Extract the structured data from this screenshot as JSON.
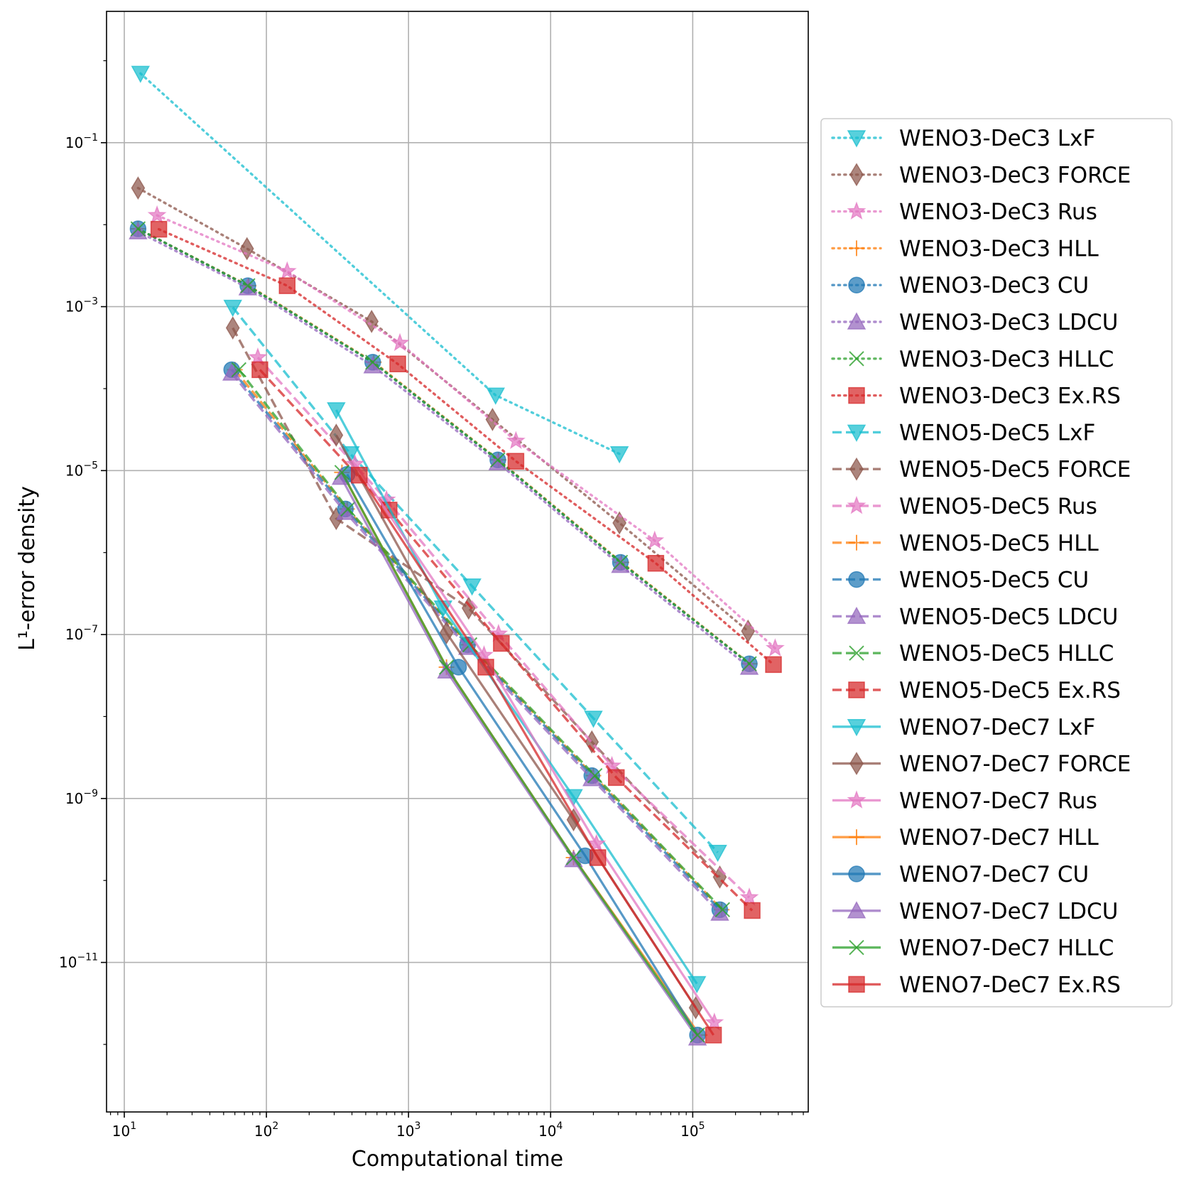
{
  "chart_data": {
    "type": "line",
    "xscale": "log",
    "yscale": "log",
    "xlabel": "Computational time",
    "ylabel": "L¹-error density",
    "xlim": [
      7.5,
      650000
    ],
    "ylim": [
      1.5e-13,
      4.0
    ],
    "xticks": [
      {
        "value": 10,
        "label": "10",
        "exp": "1"
      },
      {
        "value": 100,
        "label": "10",
        "exp": "2"
      },
      {
        "value": 1000,
        "label": "10",
        "exp": "3"
      },
      {
        "value": 10000,
        "label": "10",
        "exp": "4"
      },
      {
        "value": 100000,
        "label": "10",
        "exp": "5"
      }
    ],
    "yticks": [
      {
        "value": 0.1,
        "label": "10",
        "exp": "−1"
      },
      {
        "value": 0.001,
        "label": "10",
        "exp": "−3"
      },
      {
        "value": 1e-05,
        "label": "10",
        "exp": "−5"
      },
      {
        "value": 1e-07,
        "label": "10",
        "exp": "−7"
      },
      {
        "value": 1e-09,
        "label": "10",
        "exp": "−9"
      },
      {
        "value": 1e-11,
        "label": "10",
        "exp": "−11"
      }
    ],
    "grid": true,
    "legend_position": "right, outside the axes",
    "series": [
      {
        "name": "WENO3-DeC3 LxF",
        "color": "#17becf",
        "linestyle": "dotted",
        "marker": "triangle-down",
        "x": [
          13,
          4100,
          30500
        ],
        "y": [
          0.7,
          8.3e-05,
          1.6e-05
        ]
      },
      {
        "name": "WENO3-DeC3 FORCE",
        "color": "#8c564b",
        "linestyle": "dotted",
        "marker": "diamond",
        "x": [
          12.5,
          73,
          550,
          3900,
          30500,
          245000
        ],
        "y": [
          0.028,
          0.0051,
          0.00066,
          4.2e-05,
          2.3e-06,
          1.1e-07
        ]
      },
      {
        "name": "WENO3-DeC3 Rus",
        "color": "#e377c2",
        "linestyle": "dotted",
        "marker": "star",
        "x": [
          17,
          140,
          870,
          5700,
          54000,
          380000
        ],
        "y": [
          0.013,
          0.0027,
          0.00036,
          2.3e-05,
          1.4e-06,
          6.8e-08
        ]
      },
      {
        "name": "WENO3-DeC3 HLL",
        "color": "#ff7f0e",
        "linestyle": "dotted",
        "marker": "plus",
        "x": [
          12.5,
          75,
          570,
          4300,
          31500,
          252000
        ],
        "y": [
          0.0089,
          0.0018,
          0.00021,
          1.35e-05,
          7.6e-07,
          4.4e-08
        ]
      },
      {
        "name": "WENO3-DeC3 CU",
        "color": "#1f77b4",
        "linestyle": "dotted",
        "marker": "circle",
        "x": [
          12.5,
          74,
          560,
          4250,
          31000,
          250000
        ],
        "y": [
          0.0089,
          0.0018,
          0.00021,
          1.35e-05,
          7.6e-07,
          4.4e-08
        ]
      },
      {
        "name": "WENO3-DeC3 LDCU",
        "color": "#9467bd",
        "linestyle": "dotted",
        "marker": "triangle-up",
        "x": [
          12.5,
          74,
          560,
          4250,
          31000,
          250000
        ],
        "y": [
          0.0082,
          0.0017,
          0.00019,
          1.25e-05,
          7e-07,
          4e-08
        ]
      },
      {
        "name": "WENO3-DeC3 HLLC",
        "color": "#2ca02c",
        "linestyle": "dotted",
        "marker": "x",
        "x": [
          12.5,
          74,
          560,
          4250,
          31000,
          250000
        ],
        "y": [
          0.0089,
          0.0018,
          0.00021,
          1.35e-05,
          7.6e-07,
          4.4e-08
        ]
      },
      {
        "name": "WENO3-DeC3 Ex.RS",
        "color": "#d62728",
        "linestyle": "dotted",
        "marker": "square",
        "x": [
          17.5,
          140,
          840,
          5700,
          55000,
          370000
        ],
        "y": [
          0.0088,
          0.0018,
          0.0002,
          1.3e-05,
          7.4e-07,
          4.3e-08
        ]
      },
      {
        "name": "WENO5-DeC5 LxF",
        "color": "#17becf",
        "linestyle": "dashed",
        "marker": "triangle-down",
        "x": [
          58,
          390,
          2800,
          20000,
          150000
        ],
        "y": [
          0.00098,
          1.6e-05,
          3.9e-07,
          9.5e-09,
          2.2e-10
        ]
      },
      {
        "name": "WENO5-DeC5 FORCE",
        "color": "#8c564b",
        "linestyle": "dashed",
        "marker": "diamond",
        "x": [
          58,
          310,
          2650,
          19500,
          155000
        ],
        "y": [
          0.00055,
          2.6e-06,
          2.1e-07,
          4.9e-09,
          1.1e-10
        ]
      },
      {
        "name": "WENO5-DeC5 Rus",
        "color": "#e377c2",
        "linestyle": "dashed",
        "marker": "star",
        "x": [
          87,
          700,
          4300,
          27000,
          250000
        ],
        "y": [
          0.00024,
          4.4e-06,
          1.02e-07,
          2.5e-09,
          6.2e-11
        ]
      },
      {
        "name": "WENO5-DeC5 HLL",
        "color": "#ff7f0e",
        "linestyle": "dashed",
        "marker": "plus",
        "x": [
          60,
          370,
          2650,
          20000,
          160000
        ],
        "y": [
          0.00017,
          3.4e-06,
          7.5e-08,
          1.9e-09,
          4.4e-11
        ]
      },
      {
        "name": "WENO5-DeC5 CU",
        "color": "#1f77b4",
        "linestyle": "dashed",
        "marker": "circle",
        "x": [
          57,
          360,
          2600,
          19500,
          155000
        ],
        "y": [
          0.00017,
          3.4e-06,
          7.5e-08,
          1.9e-09,
          4.4e-11
        ]
      },
      {
        "name": "WENO5-DeC5 LDCU",
        "color": "#9467bd",
        "linestyle": "dashed",
        "marker": "triangle-up",
        "x": [
          57,
          360,
          2600,
          19500,
          155000
        ],
        "y": [
          0.000155,
          3.1e-06,
          7e-08,
          1.75e-09,
          4e-11
        ]
      },
      {
        "name": "WENO5-DeC5 HLLC",
        "color": "#2ca02c",
        "linestyle": "dashed",
        "marker": "x",
        "x": [
          64,
          375,
          2700,
          20500,
          162000
        ],
        "y": [
          0.00017,
          3.4e-06,
          7.5e-08,
          1.9e-09,
          4.4e-11
        ]
      },
      {
        "name": "WENO5-DeC5 Ex.RS",
        "color": "#d62728",
        "linestyle": "dashed",
        "marker": "square",
        "x": [
          90,
          730,
          4500,
          29000,
          262000
        ],
        "y": [
          0.00017,
          3.3e-06,
          7.8e-08,
          1.8e-09,
          4.3e-11
        ]
      },
      {
        "name": "WENO7-DeC7 LxF",
        "color": "#17becf",
        "linestyle": "solid",
        "marker": "triangle-down",
        "x": [
          310,
          1750,
          14500,
          107000
        ],
        "y": [
          5.5e-05,
          2.1e-07,
          1.05e-09,
          5.5e-12
        ]
      },
      {
        "name": "WENO7-DeC7 FORCE",
        "color": "#8c564b",
        "linestyle": "solid",
        "marker": "diamond",
        "x": [
          310,
          1850,
          14500,
          105000
        ],
        "y": [
          2.7e-05,
          1.05e-07,
          5.5e-10,
          2.8e-12
        ]
      },
      {
        "name": "WENO7-DeC7 Rus",
        "color": "#e377c2",
        "linestyle": "solid",
        "marker": "star",
        "x": [
          420,
          3400,
          21000,
          142000
        ],
        "y": [
          1.2e-05,
          5.6e-08,
          2.8e-10,
          1.85e-12
        ]
      },
      {
        "name": "WENO7-DeC7 HLL",
        "color": "#ff7f0e",
        "linestyle": "solid",
        "marker": "plus",
        "x": [
          340,
          1850,
          14500,
          112000
        ],
        "y": [
          9.5e-06,
          4e-08,
          1.9e-10,
          1.3e-12
        ]
      },
      {
        "name": "WENO7-DeC7 CU",
        "color": "#1f77b4",
        "linestyle": "solid",
        "marker": "circle",
        "x": [
          370,
          2250,
          17500,
          108000
        ],
        "y": [
          9e-06,
          4e-08,
          2e-10,
          1.3e-12
        ]
      },
      {
        "name": "WENO7-DeC7 LDCU",
        "color": "#9467bd",
        "linestyle": "solid",
        "marker": "triangle-up",
        "x": [
          335,
          1850,
          14500,
          108000
        ],
        "y": [
          8.3e-06,
          3.6e-08,
          1.8e-10,
          1.2e-12
        ]
      },
      {
        "name": "WENO7-DeC7 HLLC",
        "color": "#2ca02c",
        "linestyle": "solid",
        "marker": "x",
        "x": [
          340,
          1850,
          14500,
          108000
        ],
        "y": [
          9.5e-06,
          4e-08,
          1.9e-10,
          1.3e-12
        ]
      },
      {
        "name": "WENO7-DeC7 Ex.RS",
        "color": "#d62728",
        "linestyle": "solid",
        "marker": "square",
        "x": [
          450,
          3500,
          21500,
          140000
        ],
        "y": [
          8.8e-06,
          4e-08,
          1.9e-10,
          1.3e-12
        ]
      }
    ]
  }
}
